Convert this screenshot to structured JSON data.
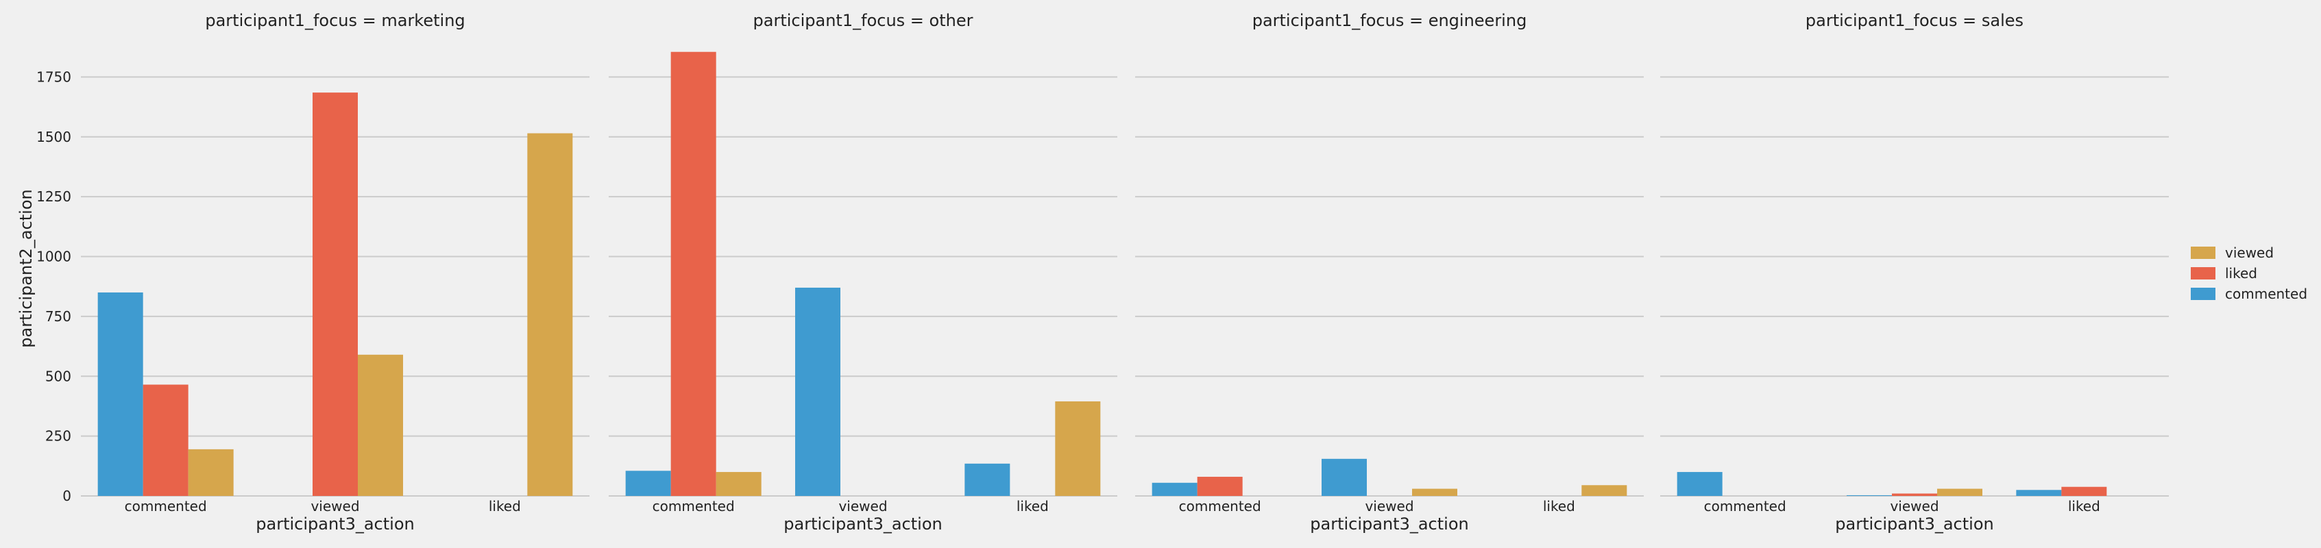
{
  "chart_data": {
    "type": "bar",
    "facet_variable": "participant1_focus",
    "categories": [
      "commented",
      "viewed",
      "liked"
    ],
    "xlabel": "participant3_action",
    "ylabel": "participant2_action",
    "ylim": [
      0,
      1900
    ],
    "yticks": [
      0,
      250,
      500,
      750,
      1000,
      1250,
      1500,
      1750
    ],
    "grid": true,
    "legend_position": "right",
    "legend": [
      {
        "name": "viewed",
        "color": "#d6a64c"
      },
      {
        "name": "liked",
        "color": "#e8634a"
      },
      {
        "name": "commented",
        "color": "#3f9bd0"
      }
    ],
    "panels": [
      {
        "title": "participant1_focus = marketing",
        "series": [
          {
            "name": "commented",
            "values": [
              850,
              0,
              0
            ]
          },
          {
            "name": "liked",
            "values": [
              465,
              1685,
              0
            ]
          },
          {
            "name": "viewed",
            "values": [
              195,
              590,
              1515
            ]
          }
        ]
      },
      {
        "title": "participant1_focus = other",
        "series": [
          {
            "name": "commented",
            "values": [
              105,
              870,
              135
            ]
          },
          {
            "name": "liked",
            "values": [
              1855,
              0,
              0
            ]
          },
          {
            "name": "viewed",
            "values": [
              100,
              0,
              395
            ]
          }
        ]
      },
      {
        "title": "participant1_focus = engineering",
        "series": [
          {
            "name": "commented",
            "values": [
              55,
              155,
              0
            ]
          },
          {
            "name": "liked",
            "values": [
              80,
              0,
              0
            ]
          },
          {
            "name": "viewed",
            "values": [
              0,
              30,
              45
            ]
          }
        ]
      },
      {
        "title": "participant1_focus = sales",
        "series": [
          {
            "name": "commented",
            "values": [
              100,
              3,
              25
            ]
          },
          {
            "name": "liked",
            "values": [
              0,
              10,
              38
            ]
          },
          {
            "name": "viewed",
            "values": [
              0,
              30,
              0
            ]
          }
        ]
      }
    ]
  }
}
